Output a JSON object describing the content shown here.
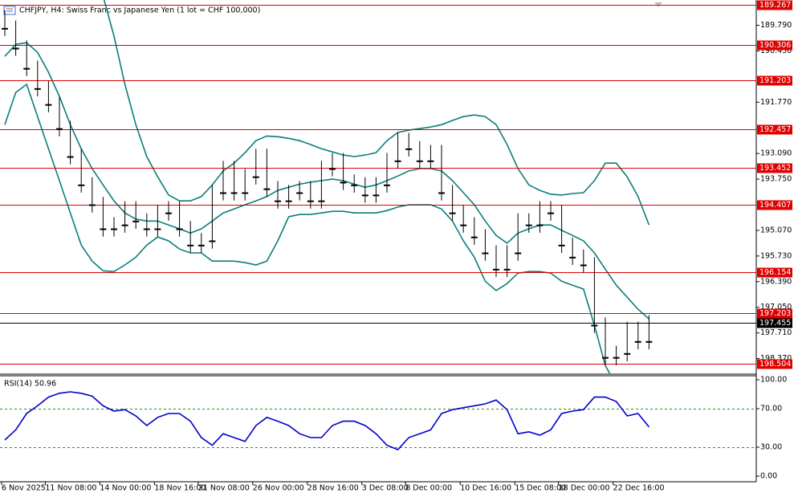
{
  "chart_data": [
    {
      "type": "candlestick",
      "title": "CHFJPY, H4:  Swiss Franc vs Japanese Yen (1 lot = CHF 100,000)",
      "up_color": "#ffffff",
      "down_color": "#000000",
      "categories": [
        "6 Nov 2025",
        null,
        null,
        null,
        "11 Nov 08:00",
        null,
        null,
        null,
        null,
        "14 Nov 00:00",
        null,
        null,
        null,
        null,
        "18 Nov 16:00",
        null,
        null,
        null,
        "21 Nov 08:00",
        null,
        null,
        null,
        null,
        "26 Nov 00:00",
        null,
        null,
        null,
        null,
        "28 Nov 16:00",
        null,
        null,
        null,
        null,
        "3 Dec 08:00",
        null,
        null,
        null,
        "8 Dec 00:00",
        null,
        null,
        null,
        null,
        "10 Dec 16:00",
        null,
        null,
        null,
        null,
        "15 Dec 08:00",
        null,
        null,
        null,
        "18 Dec 00:00",
        null,
        null,
        null,
        null,
        "22 Dec 16:00",
        null,
        null,
        null
      ],
      "open": [
        189.6,
        189.87,
        190.38,
        190.9,
        191.42,
        191.83,
        192.45,
        193.17,
        193.9,
        194.41,
        195.03,
        194.93,
        194.52,
        194.83,
        195.03,
        194.62,
        194.52,
        195.03,
        195.45,
        195.34,
        194.1,
        193.48,
        194.1,
        193.69,
        193.17,
        194.0,
        194.31,
        194.1,
        194.0,
        194.31,
        193.48,
        193.28,
        193.83,
        193.9,
        194.16,
        193.9,
        193.28,
        192.76,
        192.97,
        193.28,
        193.07,
        194.1,
        194.62,
        194.93,
        195.24,
        195.65,
        196.07,
        195.65,
        194.83,
        194.93,
        194.52,
        194.62,
        195.45,
        195.76,
        195.96,
        197.51,
        198.34,
        198.24,
        197.62,
        197.93
      ],
      "high": [
        190.07,
        190.58,
        191.1,
        191.62,
        192.03,
        192.65,
        193.37,
        194.1,
        194.61,
        195.23,
        195.23,
        195.13,
        195.03,
        195.23,
        195.23,
        194.82,
        195.23,
        195.65,
        195.65,
        195.54,
        194.3,
        194.3,
        194.3,
        193.89,
        194.2,
        194.51,
        194.51,
        194.3,
        194.51,
        194.51,
        193.68,
        194.03,
        194.1,
        194.36,
        194.36,
        194.1,
        193.48,
        193.17,
        193.48,
        193.48,
        194.3,
        194.82,
        195.13,
        195.44,
        195.85,
        196.27,
        196.27,
        195.85,
        195.13,
        195.13,
        194.82,
        195.65,
        195.96,
        196.16,
        197.71,
        198.54,
        198.54,
        198.44,
        198.13,
        198.13
      ],
      "low": [
        189.4,
        189.67,
        190.18,
        190.7,
        191.22,
        191.63,
        192.25,
        192.97,
        193.7,
        194.21,
        194.73,
        194.32,
        194.32,
        194.63,
        194.42,
        194.32,
        194.32,
        194.83,
        195.14,
        193.9,
        193.28,
        193.28,
        193.49,
        192.97,
        192.97,
        193.8,
        193.9,
        193.8,
        193.8,
        193.28,
        193.08,
        193.08,
        193.63,
        193.7,
        193.7,
        193.08,
        192.56,
        192.56,
        192.77,
        192.87,
        192.87,
        193.9,
        194.42,
        194.73,
        195.04,
        195.45,
        195.45,
        194.63,
        194.63,
        194.32,
        194.32,
        194.42,
        195.25,
        195.56,
        195.76,
        197.31,
        198.04,
        197.42,
        197.42,
        197.25
      ],
      "close": [
        189.87,
        190.38,
        190.9,
        191.42,
        191.83,
        192.45,
        193.17,
        193.9,
        194.41,
        195.03,
        194.93,
        194.52,
        194.83,
        195.03,
        194.62,
        194.52,
        195.03,
        195.45,
        195.34,
        194.1,
        193.48,
        194.1,
        193.69,
        193.17,
        194.0,
        194.31,
        194.1,
        194.0,
        194.31,
        193.48,
        193.28,
        193.83,
        193.9,
        194.16,
        193.9,
        193.28,
        192.76,
        192.97,
        193.28,
        193.07,
        194.1,
        194.62,
        194.93,
        195.24,
        195.65,
        196.07,
        195.65,
        194.83,
        194.93,
        194.52,
        194.62,
        195.45,
        195.76,
        195.96,
        197.51,
        198.34,
        198.24,
        197.62,
        197.93,
        197.455
      ],
      "bands": {
        "color": "#0b7d7d",
        "upper": [
          192.35,
          191.52,
          191.31,
          192.14,
          192.97,
          193.79,
          194.62,
          195.45,
          195.86,
          196.11,
          196.13,
          195.96,
          195.76,
          195.45,
          195.24,
          195.34,
          195.55,
          195.65,
          195.65,
          195.86,
          195.86,
          195.86,
          195.9,
          195.96,
          195.86,
          195.34,
          194.72,
          194.66,
          194.66,
          194.62,
          194.58,
          194.58,
          194.62,
          194.62,
          194.62,
          194.56,
          194.47,
          194.41,
          194.41,
          194.41,
          194.52,
          194.83,
          195.34,
          195.76,
          196.38,
          196.62,
          196.44,
          196.17,
          196.13,
          196.13,
          196.17,
          196.38,
          196.48,
          196.58,
          197.51,
          198.55,
          199.06,
          199.27,
          199.17,
          199.06
        ],
        "middle": [
          190.59,
          190.28,
          190.24,
          190.49,
          191.0,
          191.62,
          192.35,
          192.97,
          193.48,
          193.9,
          194.31,
          194.62,
          194.78,
          194.83,
          194.83,
          194.93,
          195.03,
          195.14,
          195.03,
          194.83,
          194.62,
          194.52,
          194.41,
          194.31,
          194.2,
          194.04,
          193.96,
          193.88,
          193.83,
          193.79,
          193.75,
          193.79,
          193.88,
          193.96,
          193.9,
          193.79,
          193.67,
          193.54,
          193.48,
          193.48,
          193.54,
          193.79,
          194.1,
          194.41,
          194.83,
          195.2,
          195.4,
          195.14,
          195.03,
          194.93,
          194.93,
          195.07,
          195.2,
          195.34,
          195.65,
          196.07,
          196.48,
          196.79,
          197.1,
          197.35
        ],
        "lower": [
          188.5,
          188.3,
          188.0,
          187.8,
          187.6,
          187.5,
          187.6,
          187.9,
          188.4,
          189.04,
          190.07,
          191.31,
          192.35,
          193.17,
          193.69,
          194.16,
          194.31,
          194.31,
          194.2,
          193.9,
          193.54,
          193.34,
          193.07,
          192.76,
          192.64,
          192.66,
          192.7,
          192.76,
          192.86,
          192.97,
          193.05,
          193.13,
          193.17,
          193.13,
          193.07,
          192.76,
          192.55,
          192.49,
          192.45,
          192.41,
          192.35,
          192.24,
          192.14,
          192.1,
          192.14,
          192.35,
          192.86,
          193.48,
          193.9,
          194.04,
          194.14,
          194.16,
          194.12,
          194.1,
          193.79,
          193.34,
          193.34,
          193.69,
          194.2,
          194.93
        ]
      },
      "ylim": [
        189.14,
        198.75
      ],
      "yticks": [
        {
          "value": 198.37,
          "label": "198.370"
        },
        {
          "value": 197.71,
          "label": "197.710"
        },
        {
          "value": 197.05,
          "label": "197.050"
        },
        {
          "value": 196.39,
          "label": "196.390"
        },
        {
          "value": 195.73,
          "label": "195.730"
        },
        {
          "value": 195.07,
          "label": "195.070"
        },
        {
          "value": 193.75,
          "label": "193.750"
        },
        {
          "value": 193.09,
          "label": "193.090"
        },
        {
          "value": 191.77,
          "label": "191.770"
        },
        {
          "value": 190.45,
          "label": "190.450"
        },
        {
          "value": 189.79,
          "label": "189.790"
        }
      ],
      "levels_color": "#e00000",
      "levels": [
        {
          "value": 198.504,
          "label": "198.504"
        },
        {
          "value": 197.203,
          "label": "197.203"
        },
        {
          "value": 196.154,
          "label": "196.154"
        },
        {
          "value": 194.407,
          "label": "194.407"
        },
        {
          "value": 193.452,
          "label": "193.452"
        },
        {
          "value": 192.457,
          "label": "192.457"
        },
        {
          "value": 191.203,
          "label": "191.203"
        },
        {
          "value": 190.306,
          "label": "190.306"
        },
        {
          "value": 189.267,
          "label": "189.267"
        }
      ],
      "current": {
        "value": 197.455,
        "label": "197.455"
      }
    },
    {
      "type": "line",
      "title": "RSI(14) 50.96",
      "color": "#0000cc",
      "values": [
        37.5,
        48,
        65,
        73,
        82,
        86,
        87.5,
        86,
        83,
        73,
        67.5,
        69,
        62.5,
        52.5,
        61,
        65,
        65,
        57,
        40,
        32,
        44,
        40,
        36,
        52.5,
        61,
        57,
        52.5,
        44,
        40,
        40,
        52.5,
        57,
        57,
        52.5,
        44,
        32,
        27.5,
        40,
        44,
        48,
        65,
        69,
        71,
        73,
        75,
        79,
        69,
        44,
        46,
        42.5,
        48,
        65,
        67.5,
        69,
        82,
        82,
        77.5,
        62.5,
        65,
        51
      ],
      "ylim": [
        0,
        100
      ],
      "yticks": [
        {
          "value": 100,
          "label": "100.00"
        },
        {
          "value": 70,
          "label": "70.00"
        },
        {
          "value": 30,
          "label": "30.00"
        },
        {
          "value": 0,
          "label": "0.00"
        }
      ],
      "levels": [
        70,
        30
      ],
      "levels_color": "#1a9a1a"
    }
  ]
}
